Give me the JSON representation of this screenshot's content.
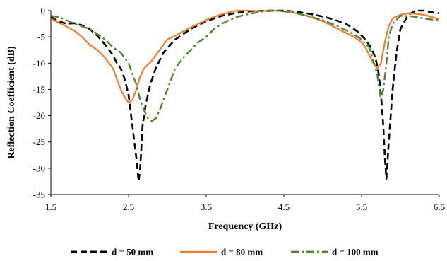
{
  "chart_data": {
    "type": "line",
    "title": "",
    "xlabel": "Frequency (GHz)",
    "ylabel": "Reflection Coefficient (dB)",
    "xlim": [
      1.5,
      6.5
    ],
    "ylim": [
      -35,
      0
    ],
    "xticks": [
      1.5,
      2.5,
      3.5,
      4.5,
      5.5,
      6.5
    ],
    "xtick_labels": [
      "1.5",
      "2.5",
      "3.5",
      "4.5",
      "5.5",
      "6.5"
    ],
    "yticks": [
      0,
      -5,
      -10,
      -15,
      -20,
      -25,
      -30,
      -35
    ],
    "ytick_labels": [
      "0",
      "-5",
      "-10",
      "-15",
      "-20",
      "-25",
      "-30",
      "-35"
    ],
    "grid": false,
    "legend_position": "bottom",
    "series": [
      {
        "name": "d = 50 mm",
        "color": "#000000",
        "dash": "dashed",
        "x": [
          1.5,
          1.6,
          1.7,
          1.8,
          1.9,
          2.0,
          2.1,
          2.2,
          2.3,
          2.35,
          2.4,
          2.45,
          2.5,
          2.55,
          2.6,
          2.63,
          2.65,
          2.68,
          2.72,
          2.78,
          2.85,
          2.95,
          3.1,
          3.3,
          3.5,
          3.7,
          3.9,
          4.1,
          4.3,
          4.5,
          4.7,
          4.9,
          5.1,
          5.3,
          5.45,
          5.55,
          5.62,
          5.68,
          5.72,
          5.75,
          5.78,
          5.8,
          5.82,
          5.85,
          5.9,
          5.95,
          6.0,
          6.1,
          6.2,
          6.3,
          6.4,
          6.5
        ],
        "y": [
          -1.2,
          -2.0,
          -2.5,
          -2.4,
          -2.8,
          -3.5,
          -4.8,
          -6.5,
          -8.5,
          -10.0,
          -11.0,
          -13.0,
          -16.0,
          -22.0,
          -28.0,
          -32.5,
          -30.0,
          -22.0,
          -18.0,
          -14.0,
          -11.0,
          -8.0,
          -5.5,
          -3.5,
          -2.0,
          -1.0,
          -0.4,
          -0.1,
          0.0,
          0.0,
          -0.3,
          -0.8,
          -1.5,
          -2.5,
          -4.0,
          -5.5,
          -7.0,
          -9.0,
          -12.0,
          -16.0,
          -22.0,
          -28.0,
          -32.0,
          -25.0,
          -15.0,
          -8.0,
          -3.5,
          -0.8,
          0.0,
          0.0,
          -0.3,
          -0.5
        ]
      },
      {
        "name": "d = 80 mm",
        "color": "#ED7D31",
        "dash": "solid",
        "x": [
          1.5,
          1.6,
          1.7,
          1.8,
          1.9,
          2.0,
          2.1,
          2.2,
          2.3,
          2.35,
          2.4,
          2.45,
          2.5,
          2.55,
          2.6,
          2.65,
          2.7,
          2.8,
          2.9,
          3.0,
          3.1,
          3.2,
          3.3,
          3.4,
          3.5,
          3.6,
          3.7,
          3.8,
          3.9,
          4.0,
          4.2,
          4.4,
          4.6,
          4.8,
          5.0,
          5.2,
          5.4,
          5.5,
          5.55,
          5.6,
          5.65,
          5.7,
          5.75,
          5.8,
          5.85,
          5.9,
          6.0,
          6.1,
          6.2,
          6.3,
          6.4,
          6.5
        ],
        "y": [
          -1.5,
          -2.3,
          -3.0,
          -3.8,
          -5.0,
          -6.5,
          -7.5,
          -9.0,
          -11.0,
          -13.0,
          -15.0,
          -16.5,
          -17.5,
          -17.0,
          -15.0,
          -12.5,
          -11.0,
          -9.5,
          -7.5,
          -5.5,
          -4.8,
          -4.0,
          -3.2,
          -2.5,
          -1.8,
          -1.2,
          -0.7,
          -0.3,
          0.0,
          0.0,
          -0.1,
          0.0,
          -0.3,
          -1.0,
          -2.0,
          -3.5,
          -5.0,
          -6.0,
          -7.0,
          -8.5,
          -10.0,
          -11.0,
          -10.0,
          -6.0,
          -3.0,
          -1.5,
          -0.8,
          -0.5,
          -0.6,
          -0.8,
          -1.2,
          -1.6
        ]
      },
      {
        "name": "d = 100 mm",
        "color": "#548235",
        "dash": "dashdot",
        "x": [
          1.5,
          1.6,
          1.7,
          1.8,
          1.9,
          2.0,
          2.1,
          2.2,
          2.3,
          2.4,
          2.5,
          2.6,
          2.65,
          2.7,
          2.75,
          2.8,
          2.85,
          2.9,
          2.95,
          3.0,
          3.1,
          3.2,
          3.3,
          3.4,
          3.5,
          3.6,
          3.7,
          3.8,
          3.9,
          4.0,
          4.2,
          4.4,
          4.6,
          4.8,
          5.0,
          5.2,
          5.4,
          5.5,
          5.6,
          5.65,
          5.7,
          5.72,
          5.75,
          5.78,
          5.82,
          5.85,
          5.9,
          6.0,
          6.1,
          6.2,
          6.3,
          6.4,
          6.5
        ],
        "y": [
          -1.0,
          -1.2,
          -1.8,
          -2.5,
          -3.0,
          -3.5,
          -4.5,
          -5.5,
          -7.0,
          -8.0,
          -10.0,
          -14.0,
          -17.0,
          -19.0,
          -20.5,
          -21.0,
          -20.5,
          -19.0,
          -17.0,
          -15.0,
          -11.0,
          -9.0,
          -7.5,
          -6.0,
          -5.0,
          -3.5,
          -2.5,
          -1.8,
          -1.2,
          -0.8,
          -0.2,
          0.0,
          -0.3,
          -1.0,
          -1.8,
          -3.0,
          -4.5,
          -5.5,
          -7.0,
          -9.5,
          -12.0,
          -14.0,
          -17.0,
          -15.0,
          -10.0,
          -5.0,
          -2.5,
          -1.0,
          -1.0,
          -1.2,
          -1.5,
          -1.7,
          -1.8
        ]
      }
    ]
  }
}
